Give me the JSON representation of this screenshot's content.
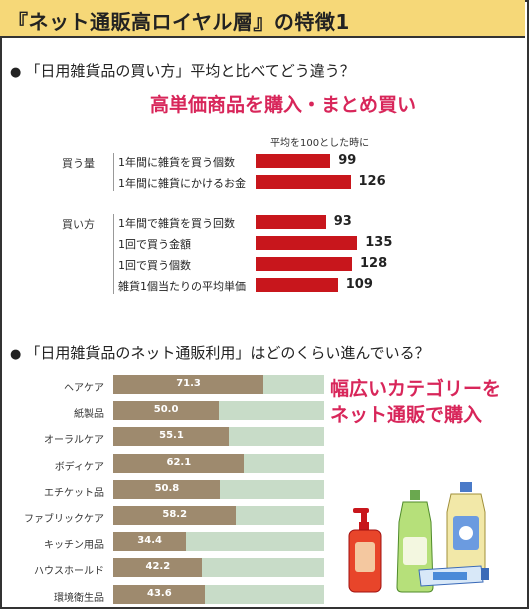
{
  "header": {
    "title": "『ネット通販高ロイヤル層』の特徴1"
  },
  "section1": {
    "question": "「日用雑貨品の買い方」平均と比べてどう違う？",
    "headline": "高単価商品を購入・まとめ買い",
    "note": "平均を100とした時に"
  },
  "section2": {
    "question": "「日用雑貨品のネット通販利用」はどのくらい進んでいる？",
    "callout_line1": "幅広いカテゴリーを",
    "callout_line2": "ネット通販で購入"
  },
  "colors": {
    "accent": "#d8265a",
    "bar_red": "#c8161c",
    "bar_brown": "#9e8a6e",
    "track_green": "#c8dcc8",
    "header_bg": "#f6d878"
  },
  "chart_data": [
    {
      "type": "bar",
      "orientation": "horizontal",
      "title": "高単価商品を購入・まとめ買い",
      "note": "平均を100とした時に",
      "groups": [
        {
          "name": "買う量",
          "items": [
            {
              "label": "1年間に雑貨を買う個数",
              "value": 99
            },
            {
              "label": "1年間に雑貨にかけるお金",
              "value": 126
            }
          ]
        },
        {
          "name": "買い方",
          "items": [
            {
              "label": "1年間で雑貨を買う回数",
              "value": 93
            },
            {
              "label": "1回で買う金額",
              "value": 135
            },
            {
              "label": "1回で買う個数",
              "value": 128
            },
            {
              "label": "雑貨1個当たりの平均単価",
              "value": 109
            }
          ]
        }
      ]
    },
    {
      "type": "bar",
      "orientation": "horizontal",
      "unit": "%",
      "xlim": [
        0,
        100
      ],
      "categories": [
        "ヘアケア",
        "紙製品",
        "オーラルケア",
        "ボディケア",
        "エチケット品",
        "ファブリックケア",
        "キッチン用品",
        "ハウスホールド",
        "環境衛生品"
      ],
      "values": [
        71.3,
        50.0,
        55.1,
        62.1,
        50.8,
        58.2,
        34.4,
        42.2,
        43.6
      ],
      "value_labels": [
        "71.3",
        "50.0",
        "55.1",
        "62.1",
        "50.8",
        "58.2",
        "34.4",
        "42.2",
        "43.6"
      ]
    }
  ]
}
